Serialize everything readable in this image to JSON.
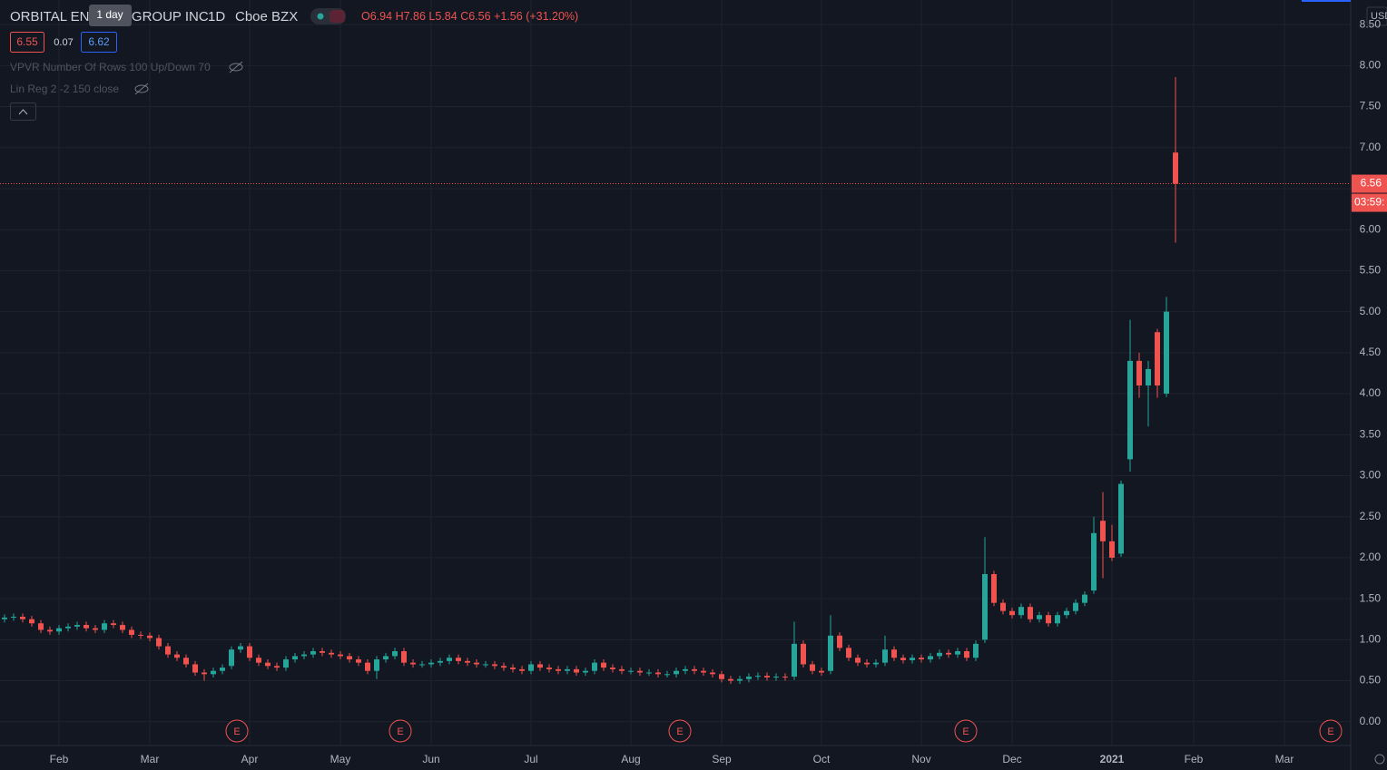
{
  "header": {
    "title": "ORBITAL ENERGY GROUP INC",
    "interval": "1D",
    "exchange": "Cboe BZX",
    "tooltip": "1 day",
    "ohlc_labels": [
      "O",
      "H",
      "L",
      "C"
    ],
    "change": {
      "value": 1.56,
      "label": "+1.56"
    },
    "change_pct": {
      "value": 31.2,
      "label": "(+31.20%)"
    }
  },
  "quote": {
    "bid": 6.55,
    "spread": 0.07,
    "ask": 6.62
  },
  "indicators": [
    "VPVR Number Of Rows 100 Up/Down 70",
    "Lin Reg 2 -2 150 close"
  ],
  "price_scale": {
    "currency": "USD",
    "countdown": "03:59:"
  },
  "earnings_markers": [
    "E",
    "E",
    "E",
    "E",
    "E"
  ],
  "chart_data": {
    "type": "candlestick",
    "grid": true,
    "up_color": "#26a69a",
    "down_color": "#ef5350",
    "ylim": [
      -0.29,
      8.8
    ],
    "yticks": [
      {
        "value": 0,
        "label": "0.00"
      },
      {
        "value": 0.5,
        "label": "0.50"
      },
      {
        "value": 1,
        "label": "1.00"
      },
      {
        "value": 1.5,
        "label": "1.50"
      },
      {
        "value": 2,
        "label": "2.00"
      },
      {
        "value": 2.5,
        "label": "2.50"
      },
      {
        "value": 3,
        "label": "3.00"
      },
      {
        "value": 3.5,
        "label": "3.50"
      },
      {
        "value": 4,
        "label": "4.00"
      },
      {
        "value": 4.5,
        "label": "4.50"
      },
      {
        "value": 5,
        "label": "5.00"
      },
      {
        "value": 5.5,
        "label": "5.50"
      },
      {
        "value": 6,
        "label": "6.00"
      },
      {
        "value": 6.5,
        "label": "6.50"
      },
      {
        "value": 7,
        "label": "7.00"
      },
      {
        "value": 7.5,
        "label": "7.50"
      },
      {
        "value": 8,
        "label": "8.00"
      },
      {
        "value": 8.5,
        "label": "8.50"
      }
    ],
    "categories": [
      null,
      null,
      null,
      null,
      null,
      null,
      "Feb",
      null,
      null,
      null,
      null,
      null,
      null,
      null,
      null,
      null,
      "Mar",
      null,
      null,
      null,
      null,
      null,
      null,
      null,
      null,
      null,
      null,
      "Apr",
      null,
      null,
      null,
      null,
      null,
      null,
      null,
      null,
      null,
      "May",
      null,
      null,
      null,
      null,
      null,
      null,
      null,
      null,
      null,
      "Jun",
      null,
      null,
      null,
      null,
      null,
      null,
      null,
      null,
      null,
      null,
      "Jul",
      null,
      null,
      null,
      null,
      null,
      null,
      null,
      null,
      null,
      null,
      "Aug",
      null,
      null,
      null,
      null,
      null,
      null,
      null,
      null,
      null,
      "Sep",
      null,
      null,
      null,
      null,
      null,
      null,
      null,
      null,
      null,
      null,
      "Oct",
      null,
      null,
      null,
      null,
      null,
      null,
      null,
      null,
      null,
      null,
      "Nov",
      null,
      null,
      null,
      null,
      null,
      null,
      null,
      null,
      null,
      "Dec",
      null,
      null,
      null,
      null,
      null,
      null,
      null,
      null,
      null,
      null,
      "2021",
      null,
      null,
      null,
      null,
      null,
      null,
      null,
      null,
      "Feb",
      null,
      null,
      null,
      null,
      null,
      null,
      null,
      null,
      null,
      "Mar",
      null,
      null,
      null,
      null,
      null,
      null,
      null
    ],
    "open": [
      1.25,
      1.27,
      1.28,
      1.25,
      1.2,
      1.12,
      1.1,
      1.14,
      1.16,
      1.18,
      1.14,
      1.12,
      1.2,
      1.18,
      1.12,
      1.06,
      1.05,
      1.02,
      0.92,
      0.82,
      0.78,
      0.7,
      0.6,
      0.58,
      0.62,
      0.68,
      0.88,
      0.92,
      0.78,
      0.72,
      0.68,
      0.66,
      0.76,
      0.8,
      0.82,
      0.86,
      0.84,
      0.82,
      0.8,
      0.76,
      0.72,
      0.62,
      0.76,
      0.8,
      0.86,
      0.72,
      0.7,
      0.7,
      0.72,
      0.74,
      0.78,
      0.74,
      0.72,
      0.7,
      0.7,
      0.68,
      0.66,
      0.64,
      0.62,
      0.7,
      0.66,
      0.64,
      0.62,
      0.64,
      0.6,
      0.62,
      0.72,
      0.66,
      0.64,
      0.62,
      0.62,
      0.6,
      0.6,
      0.58,
      0.58,
      0.62,
      0.64,
      0.62,
      0.6,
      0.58,
      0.52,
      0.5,
      0.52,
      0.55,
      0.56,
      0.54,
      0.55,
      0.55,
      0.95,
      0.7,
      0.62,
      0.62,
      1.05,
      0.9,
      0.78,
      0.72,
      0.7,
      0.72,
      0.88,
      0.78,
      0.75,
      0.78,
      0.76,
      0.8,
      0.84,
      0.82,
      0.86,
      0.78,
      1.0,
      1.8,
      1.45,
      1.35,
      1.3,
      1.4,
      1.25,
      1.3,
      1.2,
      1.3,
      1.35,
      1.45,
      1.6,
      2.45,
      2.2,
      2.05,
      3.2,
      4.4,
      4.1,
      4.75,
      4.0,
      6.94,
      null,
      null,
      null,
      null,
      null,
      null,
      null,
      null,
      null,
      null,
      null,
      null,
      null,
      null,
      null,
      null,
      null,
      null,
      null
    ],
    "high": [
      1.31,
      1.32,
      1.32,
      1.29,
      1.24,
      1.16,
      1.18,
      1.2,
      1.22,
      1.22,
      1.18,
      1.24,
      1.24,
      1.22,
      1.16,
      1.1,
      1.09,
      1.06,
      0.96,
      0.86,
      0.82,
      0.74,
      0.64,
      0.66,
      0.7,
      0.92,
      0.96,
      0.96,
      0.82,
      0.76,
      0.72,
      0.8,
      0.84,
      0.86,
      0.9,
      0.9,
      0.88,
      0.86,
      0.84,
      0.8,
      0.76,
      0.8,
      0.84,
      0.9,
      0.9,
      0.76,
      0.74,
      0.76,
      0.78,
      0.82,
      0.82,
      0.78,
      0.76,
      0.74,
      0.74,
      0.72,
      0.7,
      0.68,
      0.74,
      0.74,
      0.7,
      0.68,
      0.68,
      0.68,
      0.66,
      0.76,
      0.76,
      0.7,
      0.68,
      0.66,
      0.66,
      0.64,
      0.64,
      0.62,
      0.66,
      0.68,
      0.68,
      0.66,
      0.64,
      0.62,
      0.56,
      0.56,
      0.59,
      0.6,
      0.6,
      0.59,
      0.59,
      1.22,
      0.99,
      0.74,
      0.66,
      1.3,
      1.09,
      0.94,
      0.82,
      0.76,
      0.76,
      1.05,
      0.92,
      0.82,
      0.82,
      0.82,
      0.84,
      0.88,
      0.88,
      0.9,
      0.9,
      0.99,
      2.25,
      1.84,
      1.49,
      1.39,
      1.44,
      1.44,
      1.34,
      1.34,
      1.34,
      1.39,
      1.49,
      1.59,
      2.5,
      2.8,
      2.4,
      2.94,
      4.9,
      4.5,
      4.4,
      4.79,
      5.18,
      7.86,
      null,
      null,
      null,
      null,
      null,
      null,
      null,
      null,
      null,
      null,
      null,
      null,
      null,
      null,
      null,
      null,
      null,
      null,
      null
    ],
    "low": [
      1.21,
      1.23,
      1.21,
      1.16,
      1.08,
      1.06,
      1.06,
      1.1,
      1.12,
      1.1,
      1.08,
      1.08,
      1.14,
      1.08,
      1.02,
      1.01,
      0.98,
      0.88,
      0.78,
      0.74,
      0.66,
      0.56,
      0.5,
      0.54,
      0.58,
      0.64,
      0.84,
      0.74,
      0.68,
      0.64,
      0.62,
      0.62,
      0.72,
      0.76,
      0.78,
      0.8,
      0.78,
      0.76,
      0.72,
      0.68,
      0.58,
      0.52,
      0.72,
      0.76,
      0.68,
      0.66,
      0.66,
      0.66,
      0.68,
      0.7,
      0.7,
      0.68,
      0.66,
      0.66,
      0.64,
      0.62,
      0.6,
      0.58,
      0.58,
      0.62,
      0.6,
      0.58,
      0.58,
      0.56,
      0.56,
      0.58,
      0.62,
      0.6,
      0.58,
      0.58,
      0.56,
      0.56,
      0.54,
      0.54,
      0.54,
      0.58,
      0.58,
      0.56,
      0.54,
      0.48,
      0.46,
      0.46,
      0.48,
      0.51,
      0.5,
      0.5,
      0.5,
      0.51,
      0.66,
      0.58,
      0.56,
      0.58,
      0.86,
      0.74,
      0.68,
      0.66,
      0.66,
      0.68,
      0.74,
      0.71,
      0.71,
      0.72,
      0.72,
      0.76,
      0.78,
      0.78,
      0.74,
      0.74,
      0.96,
      1.41,
      1.31,
      1.26,
      1.26,
      1.21,
      1.21,
      1.16,
      1.16,
      1.26,
      1.31,
      1.41,
      1.56,
      1.75,
      1.96,
      2.01,
      3.05,
      3.95,
      3.6,
      3.95,
      3.96,
      5.84,
      null,
      null,
      null,
      null,
      null,
      null,
      null,
      null,
      null,
      null,
      null,
      null,
      null,
      null,
      null,
      null,
      null,
      null,
      null
    ],
    "close": [
      1.27,
      1.28,
      1.25,
      1.2,
      1.12,
      1.1,
      1.14,
      1.16,
      1.18,
      1.14,
      1.12,
      1.2,
      1.18,
      1.12,
      1.06,
      1.05,
      1.02,
      0.92,
      0.82,
      0.78,
      0.7,
      0.6,
      0.58,
      0.62,
      0.66,
      0.88,
      0.92,
      0.78,
      0.72,
      0.68,
      0.66,
      0.76,
      0.8,
      0.82,
      0.86,
      0.84,
      0.82,
      0.8,
      0.76,
      0.72,
      0.62,
      0.76,
      0.8,
      0.86,
      0.72,
      0.7,
      0.7,
      0.72,
      0.74,
      0.78,
      0.74,
      0.72,
      0.7,
      0.7,
      0.68,
      0.66,
      0.64,
      0.62,
      0.7,
      0.66,
      0.64,
      0.62,
      0.64,
      0.6,
      0.62,
      0.72,
      0.66,
      0.64,
      0.62,
      0.62,
      0.6,
      0.6,
      0.58,
      0.58,
      0.62,
      0.64,
      0.62,
      0.6,
      0.58,
      0.52,
      0.5,
      0.52,
      0.55,
      0.56,
      0.54,
      0.55,
      0.54,
      0.95,
      0.7,
      0.62,
      0.6,
      1.05,
      0.9,
      0.78,
      0.72,
      0.7,
      0.72,
      0.88,
      0.78,
      0.75,
      0.78,
      0.76,
      0.8,
      0.84,
      0.82,
      0.86,
      0.78,
      0.95,
      1.8,
      1.45,
      1.35,
      1.3,
      1.4,
      1.25,
      1.3,
      1.2,
      1.3,
      1.35,
      1.45,
      1.55,
      2.3,
      2.2,
      2.0,
      2.9,
      4.4,
      4.1,
      4.3,
      4.1,
      5.0,
      6.56,
      null,
      null,
      null,
      null,
      null,
      null,
      null,
      null,
      null,
      null,
      null,
      null,
      null,
      null,
      null,
      null,
      null,
      null,
      null
    ]
  }
}
